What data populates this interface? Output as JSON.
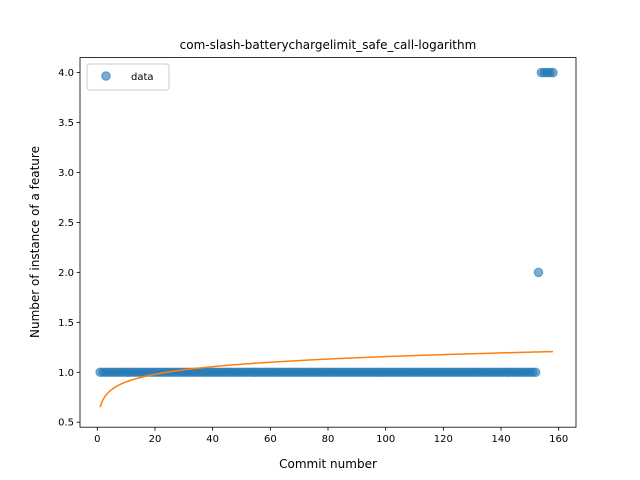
{
  "chart_data": {
    "type": "scatter",
    "title": "com-slash-batterychargelimit_safe_call-logarithm",
    "xlabel": "Commit number",
    "ylabel": "Number of instance of a feature",
    "xlim": [
      -6,
      166
    ],
    "ylim": [
      0.45,
      4.15
    ],
    "xticks": [
      0,
      20,
      40,
      60,
      80,
      100,
      120,
      140,
      160
    ],
    "yticks": [
      0.5,
      1.0,
      1.5,
      2.0,
      2.5,
      3.0,
      3.5,
      4.0
    ],
    "legend": {
      "position": "top-left",
      "entries": [
        "data"
      ]
    },
    "grid": false,
    "series": [
      {
        "name": "data",
        "kind": "scatter",
        "color": "#1f77b4",
        "segments": [
          {
            "x_from": 1,
            "x_to": 152,
            "y": 1
          }
        ],
        "points": [
          {
            "x": 153,
            "y": 2
          },
          {
            "x": 154,
            "y": 4
          },
          {
            "x": 155,
            "y": 4
          },
          {
            "x": 156,
            "y": 4
          },
          {
            "x": 157,
            "y": 4
          },
          {
            "x": 158,
            "y": 4
          }
        ]
      },
      {
        "kind": "line",
        "color": "#ff7f0e",
        "fit": {
          "form": "a + b*ln(x)",
          "a": 0.65,
          "b": 0.11,
          "x_from": 1,
          "x_to": 158
        }
      }
    ]
  }
}
